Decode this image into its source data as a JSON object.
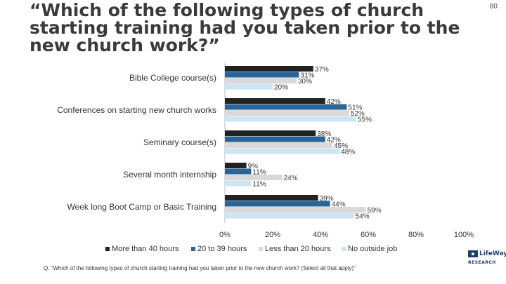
{
  "page_number": "80",
  "title": "“Which of the following types of church starting training had you taken prior to the new church work?”",
  "footnote": "Q. “Which of the following types of church starting training had you taken prior to the new church work? (Select all that apply)”",
  "logo": {
    "line1": "LifeWay",
    "line2": "RESEARCH"
  },
  "colors": {
    "series1": "#222222",
    "series2": "#2a6496",
    "series3": "#d9d9d9",
    "series4": "#cde4f2",
    "text": "#222222"
  },
  "chart_data": {
    "type": "bar",
    "orientation": "horizontal",
    "categories": [
      "Bible College course(s)",
      "Conferences on starting new church works",
      "Seminary course(s)",
      "Several month internship",
      "Week long Boot Camp or Basic Training"
    ],
    "series": [
      {
        "name": "More than 40 hours",
        "values": [
          37,
          42,
          38,
          9,
          39
        ],
        "labels": [
          "37%",
          "42%",
          "38%",
          "9%",
          "39%"
        ]
      },
      {
        "name": "20 to 39 hours",
        "values": [
          31,
          51,
          42,
          11,
          44
        ],
        "labels": [
          "31%",
          "51%",
          "42%",
          "11%",
          "44%"
        ]
      },
      {
        "name": "Less than 20 hours",
        "values": [
          30,
          52,
          45,
          24,
          59
        ],
        "labels": [
          "30%",
          "52%",
          "45%",
          "24%",
          "59%"
        ]
      },
      {
        "name": "No outside job",
        "values": [
          20,
          55,
          48,
          11,
          54
        ],
        "labels": [
          "20%",
          "55%",
          "48%",
          "11%",
          "54%"
        ]
      }
    ],
    "x_ticks": [
      "0%",
      "20%",
      "40%",
      "60%",
      "80%",
      "100%"
    ],
    "xlim": [
      0,
      100
    ],
    "legend_position": "bottom",
    "grid": false
  }
}
